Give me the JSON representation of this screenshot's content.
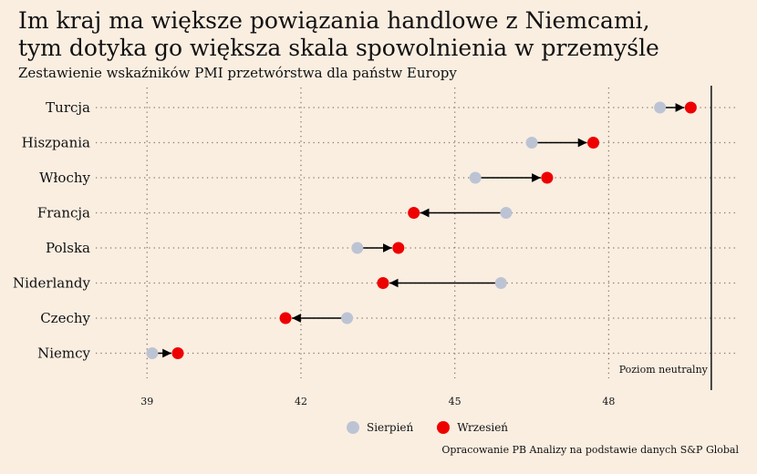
{
  "title_line1": "Im kraj ma większe powiązania handlowe z Niemcami,",
  "title_line2": "tym dotyka go większa skala spowolnienia w przemyśle",
  "subtitle": "Zestawienie wskaźników PMI przetwórstwa dla państw Europy",
  "source": "Opracowanie PB Analizy na podstawie danych S&P Global",
  "colors": {
    "sierpien": "#bcc4d4",
    "wrzesien": "#ee0000",
    "background": "#faeee1"
  },
  "legend": {
    "sierpien": "Sierpień",
    "wrzesien": "Wrzesień"
  },
  "neutral_label": "Poziom neutralny",
  "chart_data": {
    "type": "dot-plot",
    "xlim": [
      38,
      50.5
    ],
    "xticks": [
      39,
      42,
      45,
      48
    ],
    "neutral": 50,
    "categories": [
      "Turcja",
      "Hiszpania",
      "Włochy",
      "Francja",
      "Polska",
      "Niderlandy",
      "Czechy",
      "Niemcy"
    ],
    "series": [
      {
        "name": "Sierpień",
        "values": [
          49.0,
          46.5,
          45.4,
          46.0,
          43.1,
          45.9,
          42.9,
          39.1
        ]
      },
      {
        "name": "Wrzesień",
        "values": [
          49.6,
          47.7,
          46.8,
          44.2,
          43.9,
          43.6,
          41.7,
          39.6
        ]
      }
    ]
  }
}
